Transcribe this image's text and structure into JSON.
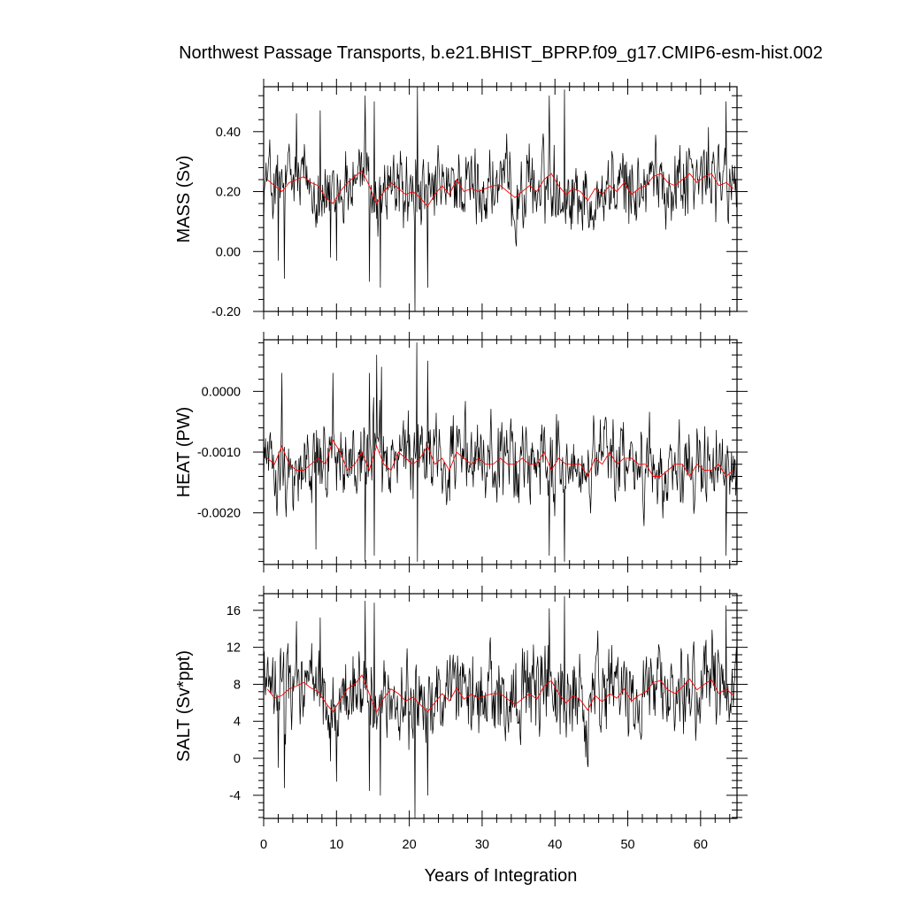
{
  "title": "Northwest Passage Transports, b.e21.BHIST_BPRP.f09_g17.CMIP6-esm-hist.002",
  "xlabel": "Years of Integration",
  "colors": {
    "monthly": "#000000",
    "annual": "#ff0000"
  },
  "chart_data": [
    {
      "type": "line",
      "ylabel": "MASS (Sv)",
      "xlim": [
        0,
        65
      ],
      "ylim": [
        -0.2,
        0.55
      ],
      "yticks": [
        -0.2,
        0.0,
        0.2,
        0.4
      ],
      "ytick_labels": [
        "-0.20",
        "0.00",
        "0.20",
        "0.40"
      ],
      "xticks": [
        0,
        10,
        20,
        30,
        40,
        50,
        60
      ],
      "xtick_labels": [
        "0",
        "10",
        "20",
        "30",
        "40",
        "50",
        "60"
      ],
      "annual_x": [
        0.5,
        1.5,
        2.5,
        3.5,
        4.5,
        5.5,
        6.5,
        7.5,
        8.5,
        9.5,
        10.5,
        11.5,
        12.5,
        13.5,
        14.5,
        15.5,
        16.5,
        17.5,
        18.5,
        19.5,
        20.5,
        21.5,
        22.5,
        23.5,
        24.5,
        25.5,
        26.5,
        27.5,
        28.5,
        29.5,
        30.5,
        31.5,
        32.5,
        33.5,
        34.5,
        35.5,
        36.5,
        37.5,
        38.5,
        39.5,
        40.5,
        41.5,
        42.5,
        43.5,
        44.5,
        45.5,
        46.5,
        47.5,
        48.5,
        49.5,
        50.5,
        51.5,
        52.5,
        53.5,
        54.5,
        55.5,
        56.5,
        57.5,
        58.5,
        59.5,
        60.5,
        61.5,
        62.5,
        63.5,
        64.5
      ],
      "annual_values": [
        0.24,
        0.22,
        0.2,
        0.23,
        0.24,
        0.25,
        0.23,
        0.22,
        0.18,
        0.16,
        0.2,
        0.23,
        0.25,
        0.27,
        0.22,
        0.16,
        0.2,
        0.23,
        0.21,
        0.19,
        0.2,
        0.18,
        0.15,
        0.19,
        0.22,
        0.19,
        0.24,
        0.2,
        0.21,
        0.2,
        0.21,
        0.22,
        0.22,
        0.2,
        0.18,
        0.2,
        0.22,
        0.2,
        0.24,
        0.26,
        0.22,
        0.19,
        0.21,
        0.2,
        0.17,
        0.21,
        0.19,
        0.22,
        0.2,
        0.23,
        0.19,
        0.21,
        0.22,
        0.25,
        0.26,
        0.23,
        0.22,
        0.24,
        0.26,
        0.23,
        0.25,
        0.26,
        0.22,
        0.23,
        0.21
      ],
      "monthly_mean": 0.21,
      "monthly_spread": 0.07,
      "monthly_extremes": [
        [
          2.0,
          -0.03
        ],
        [
          2.8,
          -0.09
        ],
        [
          9.2,
          -0.02
        ],
        [
          10.0,
          -0.03
        ],
        [
          14.5,
          -0.1
        ],
        [
          16.0,
          -0.12
        ],
        [
          20.8,
          -0.2
        ],
        [
          22.5,
          -0.12
        ],
        [
          13.9,
          0.52
        ],
        [
          15.2,
          0.5
        ],
        [
          21.1,
          0.55
        ],
        [
          39.2,
          0.52
        ],
        [
          41.3,
          0.54
        ],
        [
          63.5,
          0.5
        ],
        [
          4.5,
          0.46
        ],
        [
          7.8,
          0.47
        ]
      ]
    },
    {
      "type": "line",
      "ylabel": "HEAT (PW)",
      "xlim": [
        0,
        65
      ],
      "ylim": [
        -0.00285,
        0.00085
      ],
      "yticks": [
        -0.002,
        -0.001,
        0.0
      ],
      "ytick_labels": [
        "-0.0020",
        "-0.0010",
        "0.0000"
      ],
      "xticks": [
        0,
        10,
        20,
        30,
        40,
        50,
        60
      ],
      "xtick_labels": [
        "0",
        "10",
        "20",
        "30",
        "40",
        "50",
        "60"
      ],
      "annual_x": [
        0.5,
        1.5,
        2.5,
        3.5,
        4.5,
        5.5,
        6.5,
        7.5,
        8.5,
        9.5,
        10.5,
        11.5,
        12.5,
        13.5,
        14.5,
        15.5,
        16.5,
        17.5,
        18.5,
        19.5,
        20.5,
        21.5,
        22.5,
        23.5,
        24.5,
        25.5,
        26.5,
        27.5,
        28.5,
        29.5,
        30.5,
        31.5,
        32.5,
        33.5,
        34.5,
        35.5,
        36.5,
        37.5,
        38.5,
        39.5,
        40.5,
        41.5,
        42.5,
        43.5,
        44.5,
        45.5,
        46.5,
        47.5,
        48.5,
        49.5,
        50.5,
        51.5,
        52.5,
        53.5,
        54.5,
        55.5,
        56.5,
        57.5,
        58.5,
        59.5,
        60.5,
        61.5,
        62.5,
        63.5,
        64.5
      ],
      "annual_values": [
        -0.0011,
        -0.0012,
        -0.0009,
        -0.0012,
        -0.0013,
        -0.0013,
        -0.0012,
        -0.0011,
        -0.0012,
        -0.0008,
        -0.001,
        -0.0013,
        -0.0012,
        -0.001,
        -0.0013,
        -0.0009,
        -0.0012,
        -0.0013,
        -0.001,
        -0.0011,
        -0.0012,
        -0.0011,
        -0.0009,
        -0.0012,
        -0.0011,
        -0.0013,
        -0.001,
        -0.0011,
        -0.0012,
        -0.0011,
        -0.0012,
        -0.0012,
        -0.0011,
        -0.0012,
        -0.0012,
        -0.0011,
        -0.0012,
        -0.0012,
        -0.001,
        -0.0013,
        -0.0011,
        -0.0012,
        -0.0012,
        -0.0012,
        -0.0014,
        -0.0011,
        -0.0012,
        -0.001,
        -0.0012,
        -0.0011,
        -0.0011,
        -0.0012,
        -0.0012,
        -0.0014,
        -0.0014,
        -0.0013,
        -0.0012,
        -0.0012,
        -0.0014,
        -0.0012,
        -0.0013,
        -0.0013,
        -0.0012,
        -0.0014,
        -0.0013
      ],
      "monthly_mean": -0.00115,
      "monthly_spread": 0.00035,
      "monthly_extremes": [
        [
          13.9,
          -0.0028
        ],
        [
          15.2,
          -0.0027
        ],
        [
          21.1,
          -0.0028
        ],
        [
          39.2,
          -0.0027
        ],
        [
          41.3,
          -0.0028
        ],
        [
          63.5,
          -0.0027
        ],
        [
          7.2,
          -0.0026
        ],
        [
          15.5,
          0.0006
        ],
        [
          21.0,
          0.0008
        ],
        [
          22.5,
          0.0005
        ],
        [
          2.5,
          0.0003
        ],
        [
          9.5,
          0.0003
        ],
        [
          16.2,
          0.0004
        ],
        [
          14.5,
          0.0003
        ]
      ]
    },
    {
      "type": "line",
      "ylabel": "SALT (Sv*ppt)",
      "xlim": [
        0,
        65
      ],
      "ylim": [
        -6.5,
        17.8
      ],
      "yticks": [
        -4,
        0,
        4,
        8,
        12,
        16
      ],
      "ytick_labels": [
        "-4",
        "0",
        "4",
        "8",
        "12",
        "16"
      ],
      "xticks": [
        0,
        10,
        20,
        30,
        40,
        50,
        60
      ],
      "xtick_labels": [
        "0",
        "10",
        "20",
        "30",
        "40",
        "50",
        "60"
      ],
      "annual_x": [
        0.5,
        1.5,
        2.5,
        3.5,
        4.5,
        5.5,
        6.5,
        7.5,
        8.5,
        9.5,
        10.5,
        11.5,
        12.5,
        13.5,
        14.5,
        15.5,
        16.5,
        17.5,
        18.5,
        19.5,
        20.5,
        21.5,
        22.5,
        23.5,
        24.5,
        25.5,
        26.5,
        27.5,
        28.5,
        29.5,
        30.5,
        31.5,
        32.5,
        33.5,
        34.5,
        35.5,
        36.5,
        37.5,
        38.5,
        39.5,
        40.5,
        41.5,
        42.5,
        43.5,
        44.5,
        45.5,
        46.5,
        47.5,
        48.5,
        49.5,
        50.5,
        51.5,
        52.5,
        53.5,
        54.5,
        55.5,
        56.5,
        57.5,
        58.5,
        59.5,
        60.5,
        61.5,
        62.5,
        63.5,
        64.5
      ],
      "annual_values": [
        7.5,
        6.5,
        6.8,
        7.5,
        7.8,
        8.2,
        7.6,
        7.2,
        6.0,
        5.0,
        6.3,
        7.5,
        8.0,
        9.0,
        7.0,
        5.0,
        6.5,
        7.5,
        7.0,
        6.2,
        6.6,
        5.8,
        5.0,
        6.0,
        7.0,
        6.2,
        7.6,
        6.4,
        6.9,
        6.5,
        6.8,
        7.0,
        7.0,
        6.4,
        5.8,
        6.4,
        7.0,
        6.4,
        7.8,
        8.4,
        7.0,
        6.0,
        6.8,
        6.3,
        5.2,
        6.8,
        6.1,
        7.0,
        6.5,
        7.5,
        6.2,
        6.8,
        7.2,
        8.2,
        8.4,
        7.4,
        7.0,
        7.7,
        8.6,
        7.4,
        8.0,
        8.5,
        7.0,
        7.5,
        6.8
      ],
      "monthly_mean": 6.8,
      "monthly_spread": 2.6,
      "monthly_extremes": [
        [
          2.0,
          -1.0
        ],
        [
          2.8,
          -3.2
        ],
        [
          9.2,
          -0.3
        ],
        [
          10.0,
          -2.5
        ],
        [
          14.5,
          -3.5
        ],
        [
          16.0,
          -4.0
        ],
        [
          20.8,
          -6.5
        ],
        [
          22.5,
          -4.0
        ],
        [
          13.9,
          17.0
        ],
        [
          15.2,
          16.8
        ],
        [
          41.3,
          17.5
        ],
        [
          39.2,
          16.2
        ],
        [
          63.5,
          16.5
        ],
        [
          4.5,
          14.8
        ],
        [
          7.8,
          15.2
        ]
      ]
    }
  ]
}
